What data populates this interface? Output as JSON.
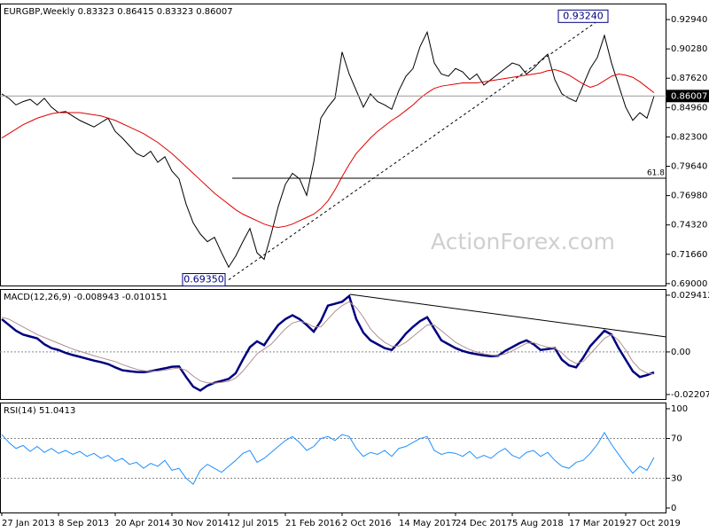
{
  "chart_data": [
    {
      "type": "line",
      "title": "EURGBP,Weekly  0.83323 0.86415 0.83323 0.86007",
      "watermark": "ActionForex.com",
      "ylim": [
        0.6883,
        0.9439
      ],
      "yticks": [
        {
          "value": 0.9294,
          "label": "0.92940"
        },
        {
          "value": 0.9028,
          "label": "0.90280"
        },
        {
          "value": 0.8762,
          "label": "0.87620"
        },
        {
          "value": 0.8496,
          "label": "0.84960"
        },
        {
          "value": 0.823,
          "label": "0.82300"
        },
        {
          "value": 0.7964,
          "label": "0.79640"
        },
        {
          "value": 0.7698,
          "label": "0.76980"
        },
        {
          "value": 0.7432,
          "label": "0.74320"
        },
        {
          "value": 0.7166,
          "label": "0.71660"
        },
        {
          "value": 0.69,
          "label": "0.69000"
        }
      ],
      "last": {
        "value": 0.86007,
        "label": "0.86007"
      },
      "high": {
        "value": 0.9324,
        "label": "0.93240"
      },
      "low": {
        "value": 0.6935,
        "label": "0.69350"
      },
      "fib_label": "61.8",
      "series": [
        {
          "color": "#000000",
          "width": 1,
          "values": [
            0.862,
            0.858,
            0.852,
            0.855,
            0.857,
            0.852,
            0.858,
            0.85,
            0.845,
            0.846,
            0.842,
            0.838,
            0.835,
            0.832,
            0.836,
            0.84,
            0.828,
            0.822,
            0.815,
            0.808,
            0.805,
            0.81,
            0.8,
            0.805,
            0.792,
            0.785,
            0.762,
            0.745,
            0.735,
            0.728,
            0.732,
            0.718,
            0.705,
            0.715,
            0.728,
            0.74,
            0.718,
            0.712,
            0.735,
            0.76,
            0.78,
            0.79,
            0.785,
            0.77,
            0.8,
            0.84,
            0.85,
            0.858,
            0.9,
            0.88,
            0.865,
            0.85,
            0.862,
            0.855,
            0.852,
            0.848,
            0.865,
            0.878,
            0.885,
            0.905,
            0.918,
            0.89,
            0.88,
            0.878,
            0.885,
            0.882,
            0.875,
            0.88,
            0.87,
            0.875,
            0.88,
            0.885,
            0.89,
            0.888,
            0.88,
            0.885,
            0.892,
            0.898,
            0.875,
            0.862,
            0.858,
            0.855,
            0.87,
            0.885,
            0.895,
            0.915,
            0.89,
            0.87,
            0.85,
            0.838,
            0.845,
            0.84,
            0.86
          ]
        },
        {
          "color": "#e00000",
          "width": 1,
          "values": [
            0.822,
            0.826,
            0.83,
            0.834,
            0.837,
            0.84,
            0.842,
            0.844,
            0.845,
            0.845,
            0.845,
            0.845,
            0.844,
            0.843,
            0.842,
            0.84,
            0.838,
            0.835,
            0.832,
            0.829,
            0.826,
            0.822,
            0.818,
            0.813,
            0.808,
            0.802,
            0.796,
            0.79,
            0.784,
            0.778,
            0.772,
            0.767,
            0.762,
            0.757,
            0.753,
            0.75,
            0.747,
            0.744,
            0.742,
            0.741,
            0.742,
            0.744,
            0.747,
            0.75,
            0.753,
            0.758,
            0.765,
            0.775,
            0.787,
            0.798,
            0.808,
            0.815,
            0.822,
            0.828,
            0.833,
            0.838,
            0.842,
            0.847,
            0.852,
            0.858,
            0.863,
            0.867,
            0.869,
            0.87,
            0.871,
            0.872,
            0.872,
            0.872,
            0.873,
            0.874,
            0.875,
            0.876,
            0.877,
            0.878,
            0.879,
            0.88,
            0.881,
            0.883,
            0.884,
            0.882,
            0.879,
            0.875,
            0.871,
            0.868,
            0.87,
            0.874,
            0.878,
            0.88,
            0.879,
            0.877,
            0.873,
            0.868,
            0.863
          ]
        }
      ]
    },
    {
      "type": "line",
      "title": "MACD(12,26,9) -0.008943 -0.010151",
      "ylim": [
        -0.0244,
        0.0326
      ],
      "yticks": [
        0.029412,
        {
          "value": 0,
          "label": "0.00"
        },
        -0.022074
      ],
      "levels": [
        0
      ],
      "series": [
        {
          "color": "#000080",
          "width": 2.5,
          "values": [
            0.017,
            0.014,
            0.011,
            0.009,
            0.008,
            0.007,
            0.004,
            0.002,
            0.001,
            -0.0005,
            -0.0016,
            -0.0025,
            -0.0035,
            -0.0045,
            -0.0053,
            -0.0063,
            -0.008,
            -0.0095,
            -0.01,
            -0.0104,
            -0.0105,
            -0.01,
            -0.0092,
            -0.0085,
            -0.0077,
            -0.0075,
            -0.013,
            -0.018,
            -0.02,
            -0.0175,
            -0.016,
            -0.015,
            -0.014,
            -0.011,
            -0.004,
            0.0025,
            0.0055,
            0.0035,
            0.009,
            0.014,
            0.017,
            0.019,
            0.017,
            0.014,
            0.0105,
            0.016,
            0.024,
            0.025,
            0.026,
            0.029,
            0.017,
            0.01,
            0.006,
            0.004,
            0.002,
            0.001,
            0.005,
            0.0095,
            0.013,
            0.016,
            0.018,
            0.012,
            0.006,
            0.004,
            0.002,
            0.0005,
            -0.0005,
            -0.0012,
            -0.0018,
            -0.0022,
            -0.002,
            0.0005,
            0.0025,
            0.0045,
            0.006,
            0.004,
            0.001,
            0.0015,
            0.002,
            -0.004,
            -0.007,
            -0.008,
            -0.003,
            0.003,
            0.007,
            0.011,
            0.009,
            0.002,
            -0.004,
            -0.01,
            -0.013,
            -0.012,
            -0.0106
          ]
        },
        {
          "color": "#b09090",
          "width": 1,
          "values": [
            0.018,
            0.017,
            0.015,
            0.013,
            0.011,
            0.009,
            0.0075,
            0.006,
            0.0045,
            0.003,
            0.0015,
            0.0003,
            -0.0008,
            -0.002,
            -0.003,
            -0.004,
            -0.005,
            -0.0065,
            -0.0078,
            -0.009,
            -0.0097,
            -0.0101,
            -0.0099,
            -0.0094,
            -0.0088,
            -0.0083,
            -0.0095,
            -0.0125,
            -0.015,
            -0.016,
            -0.0162,
            -0.0158,
            -0.0152,
            -0.0135,
            -0.01,
            -0.0055,
            -0.001,
            0.0015,
            0.004,
            0.008,
            0.012,
            0.015,
            0.016,
            0.015,
            0.013,
            0.013,
            0.017,
            0.021,
            0.024,
            0.026,
            0.023,
            0.018,
            0.012,
            0.008,
            0.005,
            0.003,
            0.003,
            0.005,
            0.008,
            0.011,
            0.014,
            0.014,
            0.011,
            0.008,
            0.005,
            0.003,
            0.0012,
            0,
            -0.001,
            -0.0016,
            -0.002,
            -0.001,
            0.0005,
            0.0025,
            0.0045,
            0.0048,
            0.0035,
            0.0025,
            0.002,
            -0.0005,
            -0.004,
            -0.006,
            -0.005,
            -0.001,
            0.003,
            0.007,
            0.009,
            0.006,
            0.001,
            -0.005,
            -0.009,
            -0.011,
            -0.0115
          ]
        }
      ]
    },
    {
      "type": "line",
      "title": "RSI(14) 51.0413",
      "ylim": [
        -4.5,
        106.2
      ],
      "yticks": [
        100,
        70,
        30,
        0
      ],
      "levels": [
        70,
        30
      ],
      "categories": [
        "27 Jan 2013",
        null,
        null,
        null,
        null,
        null,
        null,
        null,
        "8 Sep 2013",
        null,
        null,
        null,
        null,
        null,
        null,
        null,
        "20 Apr 2014",
        null,
        null,
        null,
        null,
        null,
        null,
        null,
        "30 Nov 2014",
        null,
        null,
        null,
        null,
        null,
        null,
        null,
        "12 Jul 2015",
        null,
        null,
        null,
        null,
        null,
        null,
        null,
        "21 Feb 2016",
        null,
        null,
        null,
        null,
        null,
        null,
        null,
        "2 Oct 2016",
        null,
        null,
        null,
        null,
        null,
        null,
        null,
        "14 May 2017",
        null,
        null,
        null,
        null,
        null,
        null,
        null,
        "24 Dec 2017",
        null,
        null,
        null,
        null,
        null,
        null,
        null,
        "5 Aug 2018",
        null,
        null,
        null,
        null,
        null,
        null,
        null,
        "17 Mar 2019",
        null,
        null,
        null,
        null,
        null,
        null,
        null,
        "27 Oct 2019",
        null,
        null,
        null,
        null
      ],
      "series": [
        {
          "color": "#1e90ff",
          "width": 1,
          "values": [
            74,
            66,
            60,
            63,
            57,
            62,
            56,
            60,
            55,
            58,
            54,
            57,
            52,
            55,
            50,
            53,
            47,
            50,
            44,
            46,
            40,
            45,
            42,
            48,
            38,
            40,
            30,
            24,
            38,
            44,
            40,
            36,
            42,
            48,
            55,
            58,
            46,
            50,
            56,
            62,
            68,
            72,
            66,
            58,
            62,
            70,
            72,
            68,
            74,
            72,
            60,
            52,
            56,
            54,
            58,
            52,
            60,
            62,
            66,
            70,
            72,
            58,
            54,
            56,
            55,
            52,
            57,
            50,
            53,
            50,
            56,
            60,
            53,
            50,
            56,
            58,
            52,
            56,
            48,
            42,
            40,
            46,
            48,
            55,
            64,
            76,
            64,
            54,
            44,
            35,
            42,
            38,
            51
          ]
        }
      ]
    }
  ]
}
